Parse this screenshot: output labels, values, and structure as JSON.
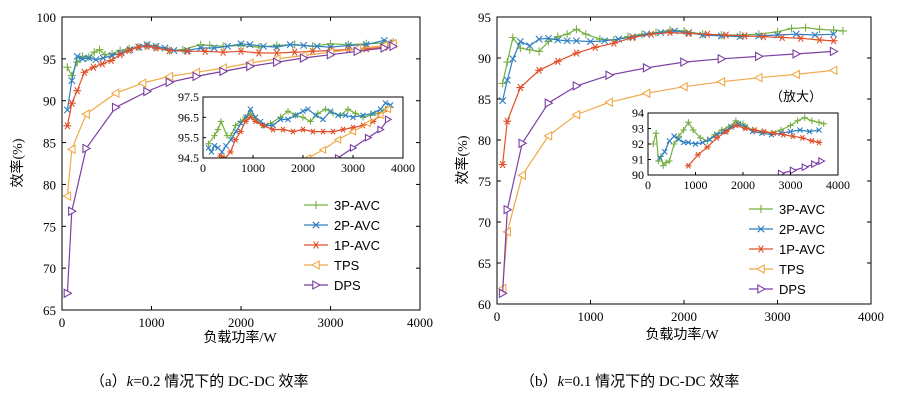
{
  "figure": {
    "style": {
      "colors": {
        "3P-AVC": "#76b041",
        "2P-AVC": "#2f7fc1",
        "1P-AVC": "#e0502a",
        "TPS": "#f0a94a",
        "DPS": "#7b3fa3"
      },
      "markers": {
        "3P-AVC": "plus",
        "2P-AVC": "x",
        "1P-AVC": "asterisk",
        "TPS": "triangle-left",
        "DPS": "triangle-right"
      }
    }
  },
  "chart_data": [
    {
      "type": "line",
      "id": "a",
      "caption_prefix": "（a）",
      "caption_k": "k",
      "caption_rest": "=0.2  情况下的 DC-DC 效率",
      "xlabel": "负载功率/W",
      "ylabel": "效率(%)",
      "xlim": [
        0,
        4000
      ],
      "ylim": [
        65,
        100
      ],
      "xticks": [
        0,
        1000,
        2000,
        3000,
        4000
      ],
      "yticks": [
        65,
        70,
        75,
        80,
        85,
        90,
        95,
        100
      ],
      "legend_position": "lower-right",
      "series": [
        {
          "name": "3P-AVC",
          "x": [
            60,
            110,
            170,
            230,
            300,
            360,
            420,
            480,
            560,
            650,
            750,
            850,
            950,
            1050,
            1200,
            1350,
            1550,
            1650,
            1800,
            2000,
            2200,
            2400,
            2600,
            2800,
            3000,
            3200,
            3400,
            3600,
            3700
          ],
          "y": [
            94.0,
            93.0,
            94.6,
            95.3,
            95.2,
            95.8,
            96.1,
            95.5,
            95.6,
            96.0,
            96.2,
            96.4,
            96.6,
            96.4,
            96.0,
            96.1,
            96.7,
            96.6,
            96.5,
            96.6,
            96.4,
            96.6,
            96.7,
            96.5,
            96.8,
            96.7,
            96.8,
            96.9,
            97.0
          ]
        },
        {
          "name": "2P-AVC",
          "x": [
            60,
            110,
            170,
            230,
            300,
            380,
            460,
            560,
            660,
            760,
            860,
            950,
            1050,
            1150,
            1250,
            1400,
            1550,
            1700,
            1850,
            2000,
            2100,
            2250,
            2400,
            2550,
            2700,
            2850,
            3000,
            3200,
            3400,
            3600,
            3700
          ],
          "y": [
            88.9,
            92.4,
            95.3,
            95.0,
            95.1,
            94.9,
            95.1,
            95.4,
            95.7,
            96.1,
            96.4,
            96.7,
            96.5,
            96.3,
            96.0,
            96.0,
            96.3,
            96.3,
            96.5,
            96.8,
            96.7,
            96.5,
            96.4,
            96.7,
            96.6,
            96.5,
            96.4,
            96.6,
            96.7,
            97.2,
            96.9
          ]
        },
        {
          "name": "1P-AVC",
          "x": [
            60,
            110,
            170,
            250,
            350,
            450,
            550,
            650,
            750,
            850,
            950,
            1050,
            1200,
            1400,
            1600,
            1800,
            2000,
            2200,
            2400,
            2600,
            2800,
            3000,
            3200,
            3400,
            3600,
            3700
          ],
          "y": [
            87.0,
            89.7,
            91.2,
            93.4,
            94.0,
            94.4,
            94.8,
            95.5,
            96.0,
            96.4,
            96.5,
            96.3,
            96.0,
            95.9,
            95.9,
            95.8,
            95.9,
            95.7,
            95.7,
            95.8,
            95.9,
            96.0,
            96.1,
            96.2,
            96.4,
            96.9
          ]
        },
        {
          "name": "TPS",
          "x": [
            60,
            110,
            270,
            600,
            900,
            1200,
            1500,
            1800,
            2100,
            2400,
            2700,
            3000,
            3300,
            3600,
            3700
          ],
          "y": [
            78.6,
            84.2,
            88.4,
            90.9,
            92.1,
            92.9,
            93.4,
            93.9,
            94.5,
            95.0,
            95.4,
            95.8,
            96.2,
            96.6,
            96.8
          ]
        },
        {
          "name": "DPS",
          "x": [
            60,
            110,
            270,
            600,
            950,
            1200,
            1500,
            1800,
            2100,
            2400,
            2700,
            3000,
            3300,
            3600,
            3700
          ],
          "y": [
            67.0,
            76.8,
            84.3,
            89.2,
            91.1,
            92.2,
            92.9,
            93.5,
            94.1,
            94.6,
            95.1,
            95.5,
            95.9,
            96.3,
            96.5
          ]
        }
      ],
      "inset": {
        "xlim": [
          0,
          4000
        ],
        "ylim": [
          94.5,
          97.5
        ],
        "xticks": [
          0,
          1000,
          2000,
          3000,
          4000
        ],
        "yticks": [
          94.5,
          95.5,
          96.5,
          97.5
        ],
        "series": [
          {
            "name": "3P-AVC",
            "x": [
              110,
              230,
              300,
              360,
              480,
              560,
              650,
              750,
              850,
              950,
              1050,
              1200,
              1350,
              1550,
              1700,
              1850,
              2000,
              2150,
              2300,
              2450,
              2600,
              2750,
              2900,
              3050,
              3200,
              3350,
              3500,
              3650,
              3750
            ],
            "y": [
              95.2,
              95.6,
              95.9,
              96.3,
              95.6,
              95.6,
              96.1,
              96.3,
              96.5,
              96.7,
              96.4,
              96.1,
              96.2,
              96.5,
              96.8,
              96.6,
              96.5,
              96.3,
              96.7,
              96.9,
              96.7,
              96.6,
              96.9,
              96.7,
              96.5,
              96.6,
              96.7,
              96.9,
              97.0
            ]
          },
          {
            "name": "2P-AVC",
            "x": [
              110,
              170,
              230,
              300,
              380,
              460,
              560,
              660,
              760,
              860,
              950,
              1050,
              1150,
              1250,
              1400,
              1550,
              1700,
              1850,
              2000,
              2100,
              2250,
              2400,
              2550,
              2700,
              2850,
              3000,
              3200,
              3400,
              3550,
              3650,
              3750
            ],
            "y": [
              95.0,
              94.8,
              95.1,
              95.0,
              94.8,
              95.1,
              95.4,
              95.8,
              96.2,
              96.5,
              96.9,
              96.5,
              96.3,
              96.1,
              96.1,
              96.4,
              96.4,
              96.6,
              96.8,
              96.9,
              96.6,
              96.4,
              96.8,
              96.6,
              96.6,
              96.5,
              96.6,
              96.7,
              96.9,
              97.2,
              97.1
            ]
          },
          {
            "name": "1P-AVC",
            "x": [
              350,
              450,
              550,
              650,
              750,
              850,
              950,
              1050,
              1200,
              1400,
              1600,
              1800,
              2000,
              2200,
              2400,
              2600,
              2800,
              3000,
              3200,
              3400,
              3550,
              3700
            ],
            "y": [
              94.6,
              94.5,
              94.8,
              95.4,
              95.8,
              96.3,
              96.5,
              96.3,
              96.1,
              95.9,
              95.9,
              95.8,
              95.9,
              95.8,
              95.8,
              95.8,
              95.9,
              96.0,
              96.1,
              96.3,
              96.6,
              96.9
            ]
          },
          {
            "name": "TPS",
            "x": [
              2100,
              2400,
              2700,
              3000,
              3300,
              3550,
              3700
            ],
            "y": [
              94.5,
              94.9,
              95.4,
              95.8,
              96.2,
              96.6,
              96.9
            ]
          },
          {
            "name": "DPS",
            "x": [
              2700,
              3000,
              3300,
              3550,
              3700
            ],
            "y": [
              94.5,
              95.0,
              95.5,
              95.9,
              96.4
            ]
          }
        ]
      }
    },
    {
      "type": "line",
      "id": "b",
      "caption_prefix": "（b）",
      "caption_k": "k",
      "caption_rest": "=0.1  情况下的 DC-DC 效率",
      "xlabel": "负载功率/W",
      "ylabel": "效率(%)",
      "xlim": [
        0,
        4000
      ],
      "ylim": [
        60,
        95
      ],
      "xticks": [
        0,
        1000,
        2000,
        3000,
        4000
      ],
      "yticks": [
        60,
        65,
        70,
        75,
        80,
        85,
        90,
        95
      ],
      "legend_position": "lower-right",
      "annotation": "（放大）",
      "series": [
        {
          "name": "3P-AVC",
          "x": [
            60,
            110,
            170,
            250,
            350,
            450,
            550,
            650,
            750,
            850,
            950,
            1100,
            1250,
            1400,
            1550,
            1700,
            1850,
            2000,
            2200,
            2400,
            2600,
            2800,
            3000,
            3150,
            3300,
            3450,
            3600,
            3700
          ],
          "y": [
            86.9,
            89.5,
            92.5,
            91.2,
            91.0,
            90.8,
            92.0,
            92.6,
            92.9,
            93.5,
            92.9,
            92.3,
            92.2,
            92.6,
            92.9,
            93.1,
            93.4,
            93.3,
            92.9,
            92.8,
            92.8,
            92.9,
            93.2,
            93.6,
            93.7,
            93.5,
            93.4,
            93.3
          ]
        },
        {
          "name": "2P-AVC",
          "x": [
            60,
            110,
            170,
            250,
            350,
            450,
            550,
            650,
            750,
            850,
            1000,
            1150,
            1300,
            1450,
            1600,
            1750,
            1900,
            2050,
            2200,
            2400,
            2600,
            2800,
            3000,
            3200,
            3400,
            3600
          ],
          "y": [
            84.8,
            87.3,
            89.9,
            92.0,
            91.5,
            92.3,
            92.4,
            92.2,
            92.1,
            92.1,
            92.0,
            92.1,
            92.3,
            92.6,
            92.9,
            93.1,
            93.3,
            93.1,
            92.8,
            92.7,
            92.6,
            92.7,
            92.8,
            92.9,
            92.8,
            92.9
          ]
        },
        {
          "name": "1P-AVC",
          "x": [
            60,
            110,
            250,
            450,
            650,
            850,
            1050,
            1250,
            1450,
            1650,
            1850,
            2050,
            2250,
            2450,
            2650,
            2850,
            3050,
            3250,
            3450,
            3600
          ],
          "y": [
            77.0,
            82.3,
            86.4,
            88.5,
            89.6,
            90.6,
            91.3,
            91.8,
            92.5,
            92.9,
            93.1,
            93.0,
            92.9,
            92.8,
            92.7,
            92.6,
            92.5,
            92.4,
            92.2,
            92.1
          ]
        },
        {
          "name": "TPS",
          "x": [
            60,
            110,
            270,
            550,
            850,
            1200,
            1600,
            2000,
            2400,
            2800,
            3200,
            3600
          ],
          "y": [
            61.9,
            68.8,
            75.7,
            80.5,
            83.1,
            84.6,
            85.7,
            86.5,
            87.1,
            87.6,
            88.0,
            88.5
          ]
        },
        {
          "name": "DPS",
          "x": [
            60,
            110,
            270,
            550,
            850,
            1200,
            1600,
            2000,
            2400,
            2800,
            3200,
            3600
          ],
          "y": [
            61.3,
            71.5,
            79.6,
            84.5,
            86.6,
            87.9,
            88.8,
            89.5,
            89.9,
            90.2,
            90.5,
            90.8
          ]
        }
      ],
      "inset": {
        "xlim": [
          0,
          4000
        ],
        "ylim": [
          90,
          94
        ],
        "xticks": [
          0,
          1000,
          2000,
          3000,
          4000
        ],
        "yticks": [
          90,
          91,
          92,
          93,
          94
        ],
        "series": [
          {
            "name": "3P-AVC",
            "x": [
              110,
              170,
              220,
              270,
              320,
              380,
              450,
              550,
              650,
              750,
              850,
              950,
              1100,
              1250,
              1400,
              1550,
              1700,
              1850,
              2000,
              2200,
              2400,
              2600,
              2800,
              3000,
              3150,
              3300,
              3450,
              3600,
              3700
            ],
            "y": [
              92.0,
              92.7,
              90.9,
              91.2,
              90.6,
              90.8,
              90.9,
              92.0,
              92.5,
              92.9,
              93.4,
              92.9,
              92.4,
              92.2,
              92.6,
              92.9,
              93.1,
              93.5,
              93.3,
              92.9,
              92.8,
              92.7,
              92.9,
              93.2,
              93.5,
              93.7,
              93.5,
              93.4,
              93.3
            ]
          },
          {
            "name": "2P-AVC",
            "x": [
              250,
              350,
              450,
              550,
              650,
              750,
              850,
              1000,
              1150,
              1300,
              1450,
              1600,
              1750,
              1900,
              2050,
              2200,
              2400,
              2600,
              2800,
              3000,
              3200,
              3400,
              3600
            ],
            "y": [
              91.1,
              91.5,
              92.2,
              92.5,
              92.3,
              92.1,
              92.1,
              92.0,
              92.1,
              92.3,
              92.6,
              92.8,
              93.1,
              93.3,
              93.1,
              92.8,
              92.7,
              92.6,
              92.7,
              92.8,
              92.9,
              92.8,
              92.9
            ]
          },
          {
            "name": "1P-AVC",
            "x": [
              850,
              1050,
              1250,
              1450,
              1650,
              1850,
              2050,
              2250,
              2450,
              2650,
              2850,
              3050,
              3250,
              3450,
              3600
            ],
            "y": [
              90.6,
              91.3,
              91.8,
              92.4,
              92.8,
              93.2,
              93.0,
              92.9,
              92.8,
              92.7,
              92.6,
              92.5,
              92.4,
              92.2,
              92.1
            ]
          },
          {
            "name": "DPS",
            "x": [
              2800,
              3050,
              3300,
              3500,
              3650
            ],
            "y": [
              90.1,
              90.3,
              90.5,
              90.7,
              90.9
            ]
          }
        ]
      }
    }
  ]
}
